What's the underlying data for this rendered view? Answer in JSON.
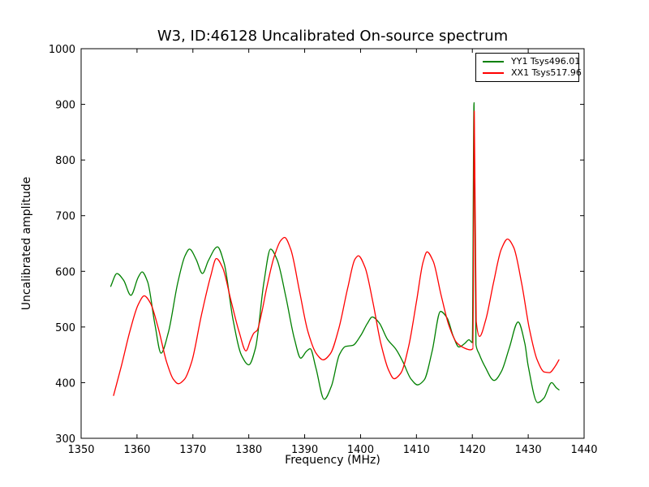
{
  "chart_data": {
    "type": "line",
    "title": "W3, ID:46128 Uncalibrated On-source spectrum",
    "xlabel": "Frequency (MHz)",
    "ylabel": "Uncalibrated amplitude",
    "xlim": [
      1350,
      1440
    ],
    "ylim": [
      300,
      1000
    ],
    "xticks": [
      1350,
      1360,
      1370,
      1380,
      1390,
      1400,
      1410,
      1420,
      1430,
      1440
    ],
    "yticks": [
      300,
      400,
      500,
      600,
      700,
      800,
      900,
      1000
    ],
    "grid": false,
    "legend_position": "upper right",
    "frame_color": "#000000",
    "background": "#ffffff",
    "series": [
      {
        "name": "YY1 Tsys496.01",
        "color": "#008000",
        "points": [
          [
            1355.3,
            573
          ],
          [
            1356.4,
            596
          ],
          [
            1357.6,
            584
          ],
          [
            1358.9,
            557
          ],
          [
            1360.2,
            589
          ],
          [
            1360.9,
            599
          ],
          [
            1361.9,
            581
          ],
          [
            1363.2,
            505
          ],
          [
            1364.3,
            453
          ],
          [
            1365.6,
            490
          ],
          [
            1367.3,
            580
          ],
          [
            1368.6,
            628
          ],
          [
            1369.4,
            640
          ],
          [
            1370.6,
            621
          ],
          [
            1371.7,
            596
          ],
          [
            1372.8,
            620
          ],
          [
            1374.4,
            644
          ],
          [
            1375.6,
            614
          ],
          [
            1377.2,
            512
          ],
          [
            1378.7,
            449
          ],
          [
            1380.0,
            432
          ],
          [
            1381.2,
            462
          ],
          [
            1382.7,
            580
          ],
          [
            1383.9,
            640
          ],
          [
            1385.1,
            620
          ],
          [
            1386.6,
            556
          ],
          [
            1388.2,
            477
          ],
          [
            1389.3,
            444
          ],
          [
            1390.3,
            456
          ],
          [
            1391.0,
            461
          ],
          [
            1392.0,
            427
          ],
          [
            1393.5,
            370
          ],
          [
            1394.8,
            394
          ],
          [
            1396.2,
            450
          ],
          [
            1397.3,
            465
          ],
          [
            1398.6,
            467
          ],
          [
            1400.0,
            484
          ],
          [
            1401.2,
            506
          ],
          [
            1402.1,
            518
          ],
          [
            1403.3,
            508
          ],
          [
            1404.8,
            478
          ],
          [
            1406.4,
            459
          ],
          [
            1407.6,
            437
          ],
          [
            1409.0,
            407
          ],
          [
            1410.2,
            396
          ],
          [
            1411.4,
            405
          ],
          [
            1412.8,
            456
          ],
          [
            1414.3,
            528
          ],
          [
            1415.5,
            516
          ],
          [
            1416.6,
            483
          ],
          [
            1417.6,
            464
          ],
          [
            1418.6,
            470
          ],
          [
            1419.4,
            477
          ],
          [
            1420.0,
            472
          ],
          [
            1420.3,
            903
          ],
          [
            1420.65,
            468
          ],
          [
            1421.2,
            452
          ],
          [
            1422.3,
            428
          ],
          [
            1423.9,
            404
          ],
          [
            1425.2,
            420
          ],
          [
            1426.6,
            462
          ],
          [
            1428.2,
            509
          ],
          [
            1429.4,
            470
          ],
          [
            1430.0,
            430
          ],
          [
            1431.7,
            364
          ],
          [
            1432.8,
            372
          ],
          [
            1434.2,
            400
          ],
          [
            1435.0,
            391
          ],
          [
            1435.5,
            387
          ]
        ]
      },
      {
        "name": "XX1 Tsys517.96",
        "color": "#ff0000",
        "points": [
          [
            1355.8,
            377
          ],
          [
            1357.2,
            430
          ],
          [
            1358.8,
            495
          ],
          [
            1360.2,
            540
          ],
          [
            1361.3,
            556
          ],
          [
            1362.4,
            543
          ],
          [
            1363.8,
            498
          ],
          [
            1365.3,
            437
          ],
          [
            1366.5,
            406
          ],
          [
            1367.4,
            398
          ],
          [
            1368.5,
            406
          ],
          [
            1369.8,
            438
          ],
          [
            1371.5,
            520
          ],
          [
            1373.2,
            592
          ],
          [
            1374.2,
            623
          ],
          [
            1375.3,
            607
          ],
          [
            1376.8,
            548
          ],
          [
            1378.3,
            490
          ],
          [
            1379.5,
            457
          ],
          [
            1380.3,
            476
          ],
          [
            1380.9,
            489
          ],
          [
            1381.5,
            494
          ],
          [
            1382.3,
            525
          ],
          [
            1383.2,
            570
          ],
          [
            1384.5,
            625
          ],
          [
            1385.7,
            655
          ],
          [
            1386.4,
            661
          ],
          [
            1387.5,
            640
          ],
          [
            1389.1,
            563
          ],
          [
            1390.6,
            491
          ],
          [
            1392.1,
            452
          ],
          [
            1393.3,
            441
          ],
          [
            1394.6,
            452
          ],
          [
            1396.1,
            497
          ],
          [
            1397.7,
            570
          ],
          [
            1399.0,
            622
          ],
          [
            1399.6,
            628
          ],
          [
            1400.8,
            607
          ],
          [
            1402.2,
            545
          ],
          [
            1403.6,
            472
          ],
          [
            1405.0,
            423
          ],
          [
            1406.0,
            407
          ],
          [
            1407.2,
            417
          ],
          [
            1408.6,
            465
          ],
          [
            1410.0,
            545
          ],
          [
            1411.2,
            617
          ],
          [
            1411.9,
            635
          ],
          [
            1413.0,
            618
          ],
          [
            1414.4,
            558
          ],
          [
            1415.8,
            503
          ],
          [
            1417.2,
            472
          ],
          [
            1418.6,
            462
          ],
          [
            1419.6,
            459
          ],
          [
            1420.1,
            461
          ],
          [
            1420.35,
            888
          ],
          [
            1420.7,
            510
          ],
          [
            1421.3,
            483
          ],
          [
            1422.4,
            513
          ],
          [
            1423.8,
            580
          ],
          [
            1425.2,
            640
          ],
          [
            1426.3,
            658
          ],
          [
            1427.4,
            643
          ],
          [
            1428.8,
            580
          ],
          [
            1430.2,
            497
          ],
          [
            1431.6,
            441
          ],
          [
            1432.9,
            419
          ],
          [
            1433.8,
            418
          ],
          [
            1434.8,
            429
          ],
          [
            1435.5,
            441
          ]
        ]
      }
    ]
  }
}
